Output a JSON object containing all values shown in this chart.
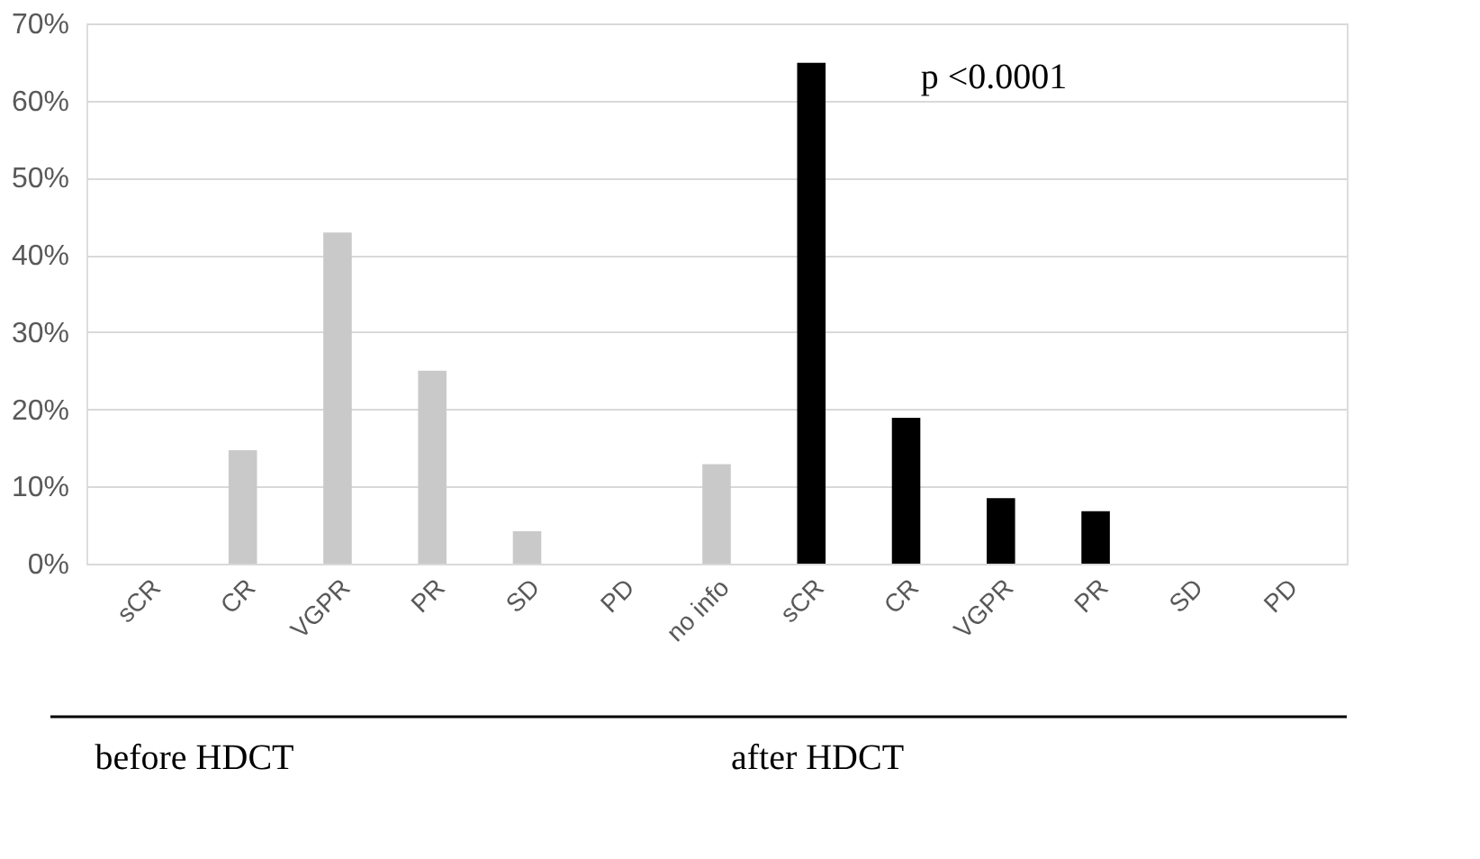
{
  "chart_data": {
    "type": "bar",
    "categories": [
      "sCR",
      "CR",
      "VGPR",
      "PR",
      "SD",
      "PD",
      "no info",
      "sCR",
      "CR",
      "VGPR",
      "PR",
      "SD",
      "PD"
    ],
    "series": [
      {
        "color": "#c9c9c9",
        "values": [
          0,
          14.7,
          42.9,
          25,
          4.2,
          0,
          12.9,
          null,
          null,
          null,
          null,
          null,
          null
        ]
      },
      {
        "color": "#000000",
        "values": [
          null,
          null,
          null,
          null,
          null,
          null,
          null,
          64.9,
          18.9,
          8.5,
          6.8,
          0,
          0
        ]
      }
    ],
    "ylim": [
      0,
      70
    ],
    "yticks": [
      {
        "value": 0,
        "label": "0%"
      },
      {
        "value": 10,
        "label": "10%"
      },
      {
        "value": 20,
        "label": "20%"
      },
      {
        "value": 30,
        "label": "30%"
      },
      {
        "value": 40,
        "label": "40%"
      },
      {
        "value": 50,
        "label": "50%"
      },
      {
        "value": 60,
        "label": "60%"
      },
      {
        "value": 70,
        "label": "70%"
      }
    ],
    "grid": "y",
    "legend": false,
    "annotations": [
      "p <0.0001",
      "before HDCT",
      "after HDCT"
    ]
  }
}
